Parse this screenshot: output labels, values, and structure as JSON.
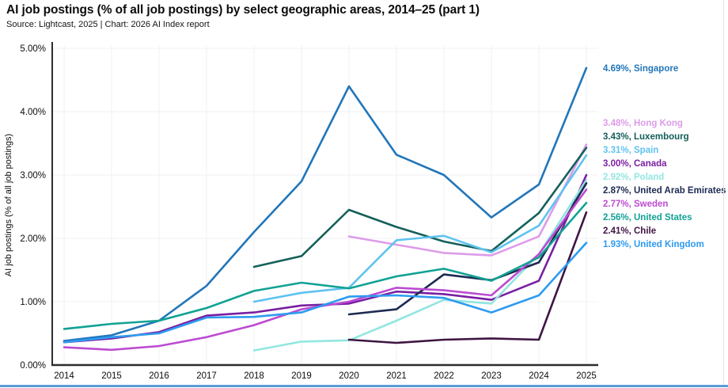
{
  "header": {
    "title": "AI job postings (% of all job postings) by select geographic areas, 2014–25 (part 1)",
    "source": "Source: Lightcast, 2025 | Chart: 2026 AI Index report"
  },
  "chart_data": {
    "type": "line",
    "x": [
      2014,
      2015,
      2016,
      2017,
      2018,
      2019,
      2020,
      2021,
      2022,
      2023,
      2024,
      2025
    ],
    "xlabel": "",
    "ylabel": "AI job postings (% of all job postings)",
    "ylim": [
      0,
      5
    ],
    "yticks": [
      "0.00%",
      "1.00%",
      "2.00%",
      "3.00%",
      "4.00%",
      "5.00%"
    ],
    "grid": true,
    "legend_position": "right-end-labels",
    "series": [
      {
        "name": "Singapore",
        "end_label": "4.69%",
        "color": "#2276b9",
        "values": [
          0.38,
          0.47,
          0.7,
          1.25,
          2.1,
          2.9,
          4.4,
          3.32,
          3.0,
          2.33,
          2.85,
          4.69
        ]
      },
      {
        "name": "Hong Kong",
        "end_label": "3.48%",
        "color": "#dd9ce9",
        "values": [
          null,
          null,
          null,
          null,
          null,
          null,
          2.03,
          1.9,
          1.77,
          1.73,
          2.03,
          3.48
        ]
      },
      {
        "name": "Luxembourg",
        "end_label": "3.43%",
        "color": "#14605a",
        "values": [
          null,
          null,
          null,
          null,
          1.55,
          1.72,
          2.45,
          2.18,
          1.95,
          1.8,
          2.4,
          3.43
        ]
      },
      {
        "name": "Spain",
        "end_label": "3.31%",
        "color": "#5ec3f0",
        "values": [
          null,
          null,
          null,
          null,
          1.0,
          1.14,
          1.22,
          1.97,
          2.04,
          1.78,
          2.2,
          3.31
        ]
      },
      {
        "name": "Canada",
        "end_label": "3.00%",
        "color": "#7a1fa2",
        "values": [
          0.36,
          0.42,
          0.52,
          0.78,
          0.83,
          0.94,
          0.97,
          1.16,
          1.12,
          1.03,
          1.33,
          3.0
        ]
      },
      {
        "name": "Poland",
        "end_label": "2.92%",
        "color": "#92e6e0",
        "values": [
          null,
          null,
          null,
          null,
          0.23,
          0.37,
          0.39,
          0.7,
          1.03,
          0.97,
          1.75,
          2.92
        ]
      },
      {
        "name": "United Arab Emirates",
        "end_label": "2.87%",
        "color": "#1d2b52",
        "values": [
          null,
          null,
          null,
          null,
          null,
          null,
          0.8,
          0.88,
          1.43,
          1.34,
          1.62,
          2.87
        ]
      },
      {
        "name": "Sweden",
        "end_label": "2.77%",
        "color": "#bc4bd1",
        "values": [
          0.28,
          0.24,
          0.3,
          0.44,
          0.63,
          0.88,
          1.0,
          1.22,
          1.18,
          1.1,
          1.75,
          2.77
        ]
      },
      {
        "name": "United States",
        "end_label": "2.56%",
        "color": "#11a294",
        "values": [
          0.57,
          0.65,
          0.7,
          0.9,
          1.17,
          1.3,
          1.21,
          1.4,
          1.52,
          1.33,
          1.7,
          2.56
        ]
      },
      {
        "name": "Chile",
        "end_label": "2.41%",
        "color": "#3f1543",
        "values": [
          null,
          null,
          null,
          null,
          null,
          null,
          0.4,
          0.35,
          0.4,
          0.42,
          0.4,
          2.41
        ]
      },
      {
        "name": "United Kingdom",
        "end_label": "1.93%",
        "color": "#2e9bf0",
        "values": [
          0.36,
          0.44,
          0.5,
          0.75,
          0.76,
          0.83,
          1.08,
          1.1,
          1.06,
          0.83,
          1.1,
          1.93
        ]
      }
    ]
  }
}
